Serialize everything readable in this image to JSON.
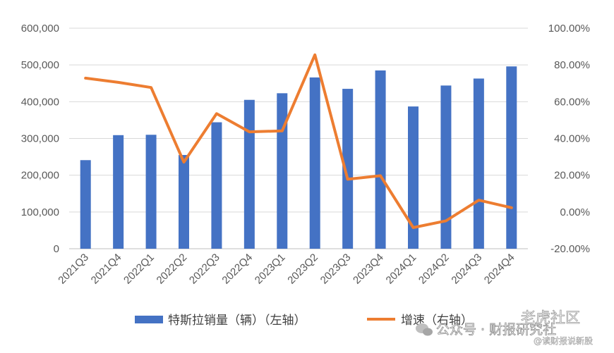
{
  "chart_data": {
    "type": "bar",
    "categories": [
      "2021Q3",
      "2021Q4",
      "2022Q1",
      "2022Q2",
      "2022Q3",
      "2022Q4",
      "2023Q1",
      "2023Q2",
      "2023Q3",
      "2023Q4",
      "2024Q1",
      "2024Q2",
      "2024Q3",
      "2024Q4"
    ],
    "series": [
      {
        "name": "特斯拉销量（辆）（左轴）",
        "type": "bar",
        "axis": "left",
        "color": "#4472C4",
        "values": [
          241000,
          309000,
          310000,
          255000,
          344000,
          405000,
          423000,
          466000,
          435000,
          485000,
          387000,
          444000,
          463000,
          496000
        ]
      },
      {
        "name": "增速（右轴）",
        "type": "line",
        "axis": "right",
        "color": "#ED7D31",
        "values": [
          72.8,
          70.5,
          67.7,
          27.1,
          53.5,
          43.6,
          44.1,
          85.5,
          17.8,
          19.7,
          -8.5,
          -4.8,
          6.4,
          2.3
        ]
      }
    ],
    "y_left": {
      "ylim": [
        0,
        600000
      ],
      "ticks": [
        "0",
        "100,000",
        "200,000",
        "300,000",
        "400,000",
        "500,000",
        "600,000"
      ]
    },
    "y_right": {
      "ylim": [
        -20,
        100
      ],
      "unit": "%",
      "ticks": [
        "-20.00%",
        "0.00%",
        "20.00%",
        "40.00%",
        "60.00%",
        "80.00%",
        "100.00%"
      ]
    },
    "grid": true,
    "legend_position": "bottom"
  },
  "watermark": {
    "line1": "公众号 · 财报研究社",
    "line2": "老虎社区",
    "line3": "@读财报说新股"
  }
}
